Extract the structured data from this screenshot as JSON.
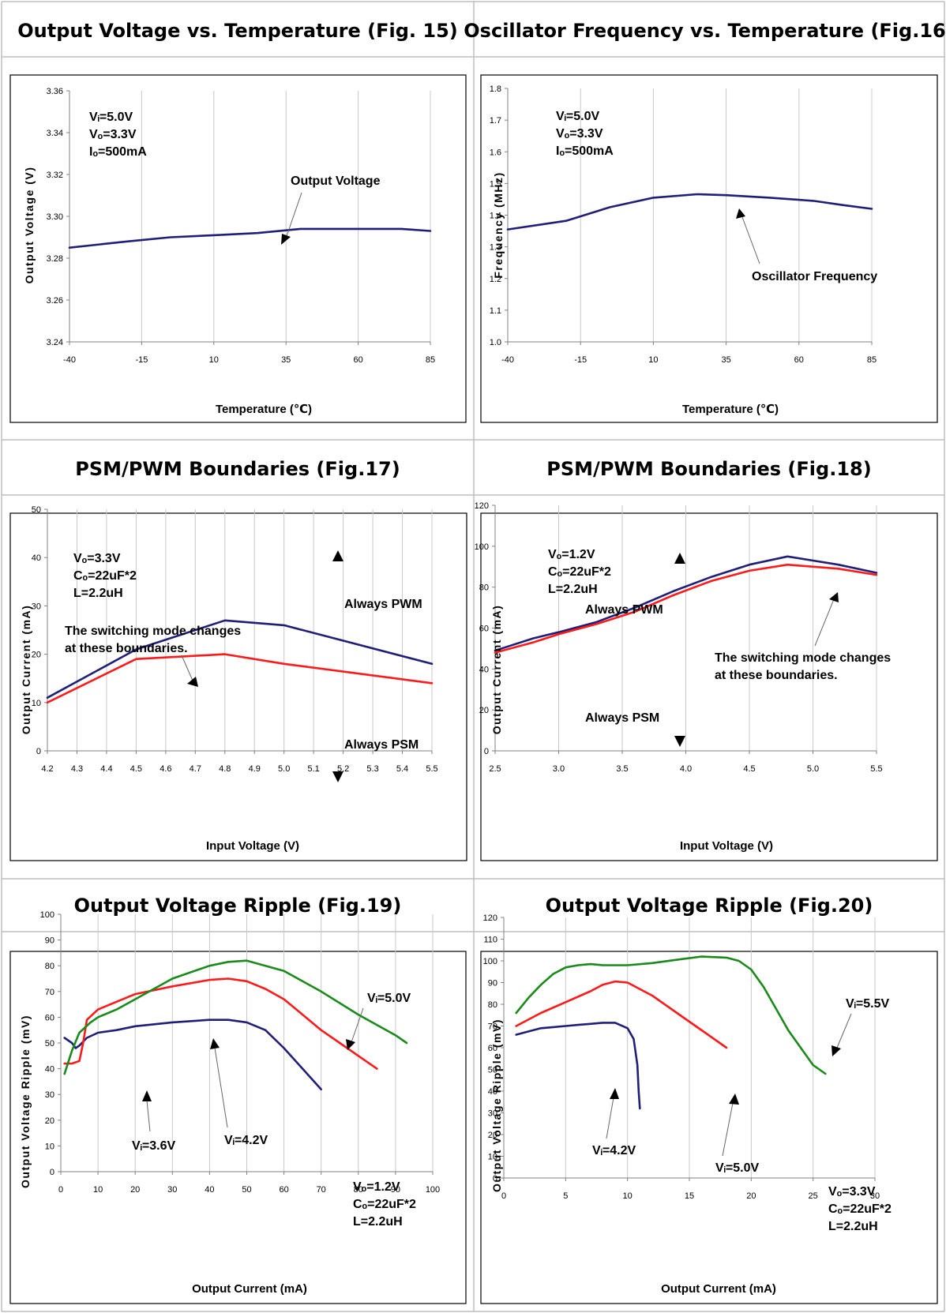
{
  "figures": [
    {
      "header": "Output Voltage vs. Temperature (Fig. 15)",
      "xlabel": "Temperature (℃)",
      "ylabel": "Output Voltage (V)",
      "conditions": [
        "Vᵢ=5.0V",
        "Vₒ=3.3V",
        "Iₒ=500mA"
      ],
      "notes": [
        "Output Voltage"
      ]
    },
    {
      "header": "Oscillator Frequency vs. Temperature (Fig.16)",
      "xlabel": "Temperature (℃)",
      "ylabel": "Frequency (MHz)",
      "conditions": [
        "Vᵢ=5.0V",
        "Vₒ=3.3V",
        "Iₒ=500mA"
      ],
      "notes": [
        "Oscillator Frequency"
      ]
    },
    {
      "header": "PSM/PWM Boundaries (Fig.17)",
      "xlabel": "Input Voltage (V)",
      "ylabel": "Output Current (mA)",
      "conditions": [
        "Vₒ=3.3V",
        "Cₒ=22uF*2",
        "L=2.2uH"
      ],
      "notes": [
        "The switching mode changes",
        "at these boundaries.",
        "Always PWM",
        "Always PSM"
      ]
    },
    {
      "header": "PSM/PWM Boundaries (Fig.18)",
      "xlabel": "Input Voltage (V)",
      "ylabel": "Output Current (mA)",
      "conditions": [
        "Vₒ=1.2V",
        "Cₒ=22uF*2",
        "L=2.2uH"
      ],
      "notes": [
        "Always PWM",
        "The switching mode changes",
        "at these boundaries.",
        "Always PSM"
      ]
    },
    {
      "header": "Output Voltage Ripple (Fig.19)",
      "xlabel": "Output Current (mA)",
      "ylabel": "Output Voltage Ripple (mV)",
      "conditions": [
        "Vₒ=1.2V",
        "Cₒ=22uF*2",
        "L=2.2uH"
      ],
      "notes": [
        "Vᵢ=5.0V",
        "Vᵢ=3.6V",
        "Vᵢ=4.2V"
      ]
    },
    {
      "header": "Output Voltage Ripple (Fig.20)",
      "xlabel": "Output Current (mA)",
      "ylabel": "Output Voltage Ripple (mV)",
      "conditions": [
        "Vₒ=3.3V",
        "Cₒ=22uF*2",
        "L=2.2uH"
      ],
      "notes": [
        "Vᵢ=5.5V",
        "Vᵢ=4.2V",
        "Vᵢ=5.0V"
      ]
    }
  ],
  "chart_data": [
    {
      "type": "line",
      "xticks": [
        "-40",
        "-15",
        "10",
        "35",
        "60",
        "85"
      ],
      "yticks": [
        "3.24",
        "3.26",
        "3.28",
        "3.30",
        "3.32",
        "3.34",
        "3.36"
      ],
      "xlim": [
        -40,
        85
      ],
      "ylim": [
        3.24,
        3.36
      ],
      "grid": "vertical",
      "series": [
        {
          "color": "#1f1f7a",
          "x": [
            -40,
            -20,
            -5,
            10,
            25,
            40,
            60,
            75,
            85
          ],
          "y": [
            3.285,
            3.288,
            3.29,
            3.291,
            3.292,
            3.294,
            3.294,
            3.294,
            3.293
          ]
        }
      ]
    },
    {
      "type": "line",
      "xticks": [
        "-40",
        "-15",
        "10",
        "35",
        "60",
        "85"
      ],
      "yticks": [
        "1.0",
        "1.1",
        "1.2",
        "1.3",
        "1.4",
        "1.5",
        "1.6",
        "1.7",
        "1.8"
      ],
      "xlim": [
        -40,
        85
      ],
      "ylim": [
        1.0,
        1.8
      ],
      "grid": "vertical",
      "series": [
        {
          "color": "#1f1f7a",
          "x": [
            -40,
            -20,
            -5,
            10,
            25,
            35,
            50,
            65,
            75,
            85
          ],
          "y": [
            1.355,
            1.382,
            1.425,
            1.455,
            1.466,
            1.463,
            1.455,
            1.445,
            1.432,
            1.42
          ]
        }
      ]
    },
    {
      "type": "line",
      "xticks": [
        "4.2",
        "4.3",
        "4.4",
        "4.5",
        "4.6",
        "4.7",
        "4.8",
        "4.9",
        "5.0",
        "5.1",
        "5.2",
        "5.3",
        "5.4",
        "5.5"
      ],
      "yticks": [
        "0",
        "10",
        "20",
        "30",
        "40",
        "50"
      ],
      "xlim": [
        4.2,
        5.5
      ],
      "ylim": [
        0,
        50
      ],
      "grid": "vertical",
      "series": [
        {
          "color": "#1f1f7a",
          "x": [
            4.2,
            4.5,
            4.8,
            5.0,
            5.5
          ],
          "y": [
            11,
            21,
            27,
            26,
            18
          ]
        },
        {
          "color": "#ff1a1a",
          "x": [
            4.2,
            4.5,
            4.8,
            5.0,
            5.5
          ],
          "y": [
            10,
            19,
            20,
            18,
            14
          ]
        }
      ]
    },
    {
      "type": "line",
      "xticks": [
        "2.5",
        "3.0",
        "3.5",
        "4.0",
        "4.5",
        "5.0",
        "5.5"
      ],
      "yticks": [
        "0",
        "20",
        "40",
        "60",
        "80",
        "100",
        "120"
      ],
      "xlim": [
        2.5,
        5.5
      ],
      "ylim": [
        0,
        120
      ],
      "grid": "vertical",
      "series": [
        {
          "color": "#1f1f7a",
          "x": [
            2.5,
            2.8,
            3.0,
            3.3,
            3.6,
            3.9,
            4.2,
            4.5,
            4.8,
            5.2,
            5.5
          ],
          "y": [
            49,
            55,
            58,
            63,
            70,
            78,
            85,
            91,
            95,
            91,
            87
          ]
        },
        {
          "color": "#ff1a1a",
          "x": [
            2.5,
            2.8,
            3.0,
            3.3,
            3.6,
            3.9,
            4.2,
            4.5,
            4.8,
            5.2,
            5.5
          ],
          "y": [
            48,
            53,
            57,
            62,
            68,
            76,
            83,
            88,
            91,
            89,
            86
          ]
        }
      ]
    },
    {
      "type": "line",
      "xticks": [
        "0",
        "10",
        "20",
        "30",
        "40",
        "50",
        "60",
        "70",
        "80",
        "90",
        "100"
      ],
      "yticks": [
        "0",
        "10",
        "20",
        "30",
        "40",
        "50",
        "60",
        "70",
        "80",
        "90",
        "100"
      ],
      "xlim": [
        0,
        100
      ],
      "ylim": [
        0,
        100
      ],
      "grid": "vertical",
      "series": [
        {
          "color": "#1f1f7a",
          "x": [
            1,
            3,
            4,
            5,
            7,
            10,
            15,
            20,
            30,
            40,
            45,
            50,
            55,
            60,
            65,
            70
          ],
          "y": [
            52,
            50,
            48,
            49,
            52,
            54,
            55,
            56.5,
            58,
            59,
            59,
            58,
            55,
            48,
            40,
            32
          ]
        },
        {
          "color": "#ff1a1a",
          "x": [
            1,
            3,
            5,
            6,
            7,
            10,
            15,
            20,
            30,
            40,
            45,
            50,
            55,
            60,
            65,
            70,
            75,
            80,
            85
          ],
          "y": [
            42,
            42,
            43,
            50,
            59,
            63,
            66,
            69,
            72,
            74.5,
            75,
            74,
            71,
            67,
            61,
            55,
            50,
            45,
            40
          ]
        },
        {
          "color": "#1a8a1a",
          "x": [
            1,
            3,
            5,
            8,
            10,
            15,
            20,
            30,
            40,
            45,
            50,
            55,
            60,
            70,
            80,
            90,
            93
          ],
          "y": [
            38,
            47,
            54,
            58,
            60,
            63,
            67,
            75,
            80,
            81.5,
            82,
            80,
            78,
            70,
            61,
            53,
            50
          ]
        }
      ]
    },
    {
      "type": "line",
      "xticks": [
        "0",
        "5",
        "10",
        "15",
        "20",
        "25",
        "30"
      ],
      "yticks": [
        "0",
        "10",
        "20",
        "30",
        "40",
        "50",
        "60",
        "70",
        "80",
        "90",
        "100",
        "110",
        "120"
      ],
      "xlim": [
        0,
        30
      ],
      "ylim": [
        0,
        120
      ],
      "grid": "vertical",
      "series": [
        {
          "color": "#1a8a1a",
          "x": [
            1,
            2,
            3,
            4,
            5,
            6,
            7,
            8,
            10,
            12,
            14,
            16,
            18,
            19,
            20,
            21,
            22,
            23,
            24,
            25,
            26
          ],
          "y": [
            76,
            83,
            89,
            94,
            97,
            98,
            98.5,
            98,
            98,
            99,
            100.5,
            102,
            101.5,
            100,
            96,
            88,
            78,
            68,
            60,
            52,
            48
          ]
        },
        {
          "color": "#ff1a1a",
          "x": [
            1,
            3,
            5,
            7,
            8,
            9,
            10,
            12,
            14,
            16,
            18
          ],
          "y": [
            70,
            76,
            81,
            86,
            89,
            90.5,
            90,
            84,
            76,
            68,
            60
          ]
        },
        {
          "color": "#1f1f7a",
          "x": [
            1,
            2,
            3,
            4,
            5,
            6,
            7,
            8,
            9,
            10,
            10.5,
            10.8,
            10.9,
            11.0
          ],
          "y": [
            66,
            67.5,
            69,
            69.5,
            70,
            70.5,
            71,
            71.5,
            71.5,
            69,
            64,
            52,
            40,
            32
          ]
        }
      ]
    }
  ]
}
